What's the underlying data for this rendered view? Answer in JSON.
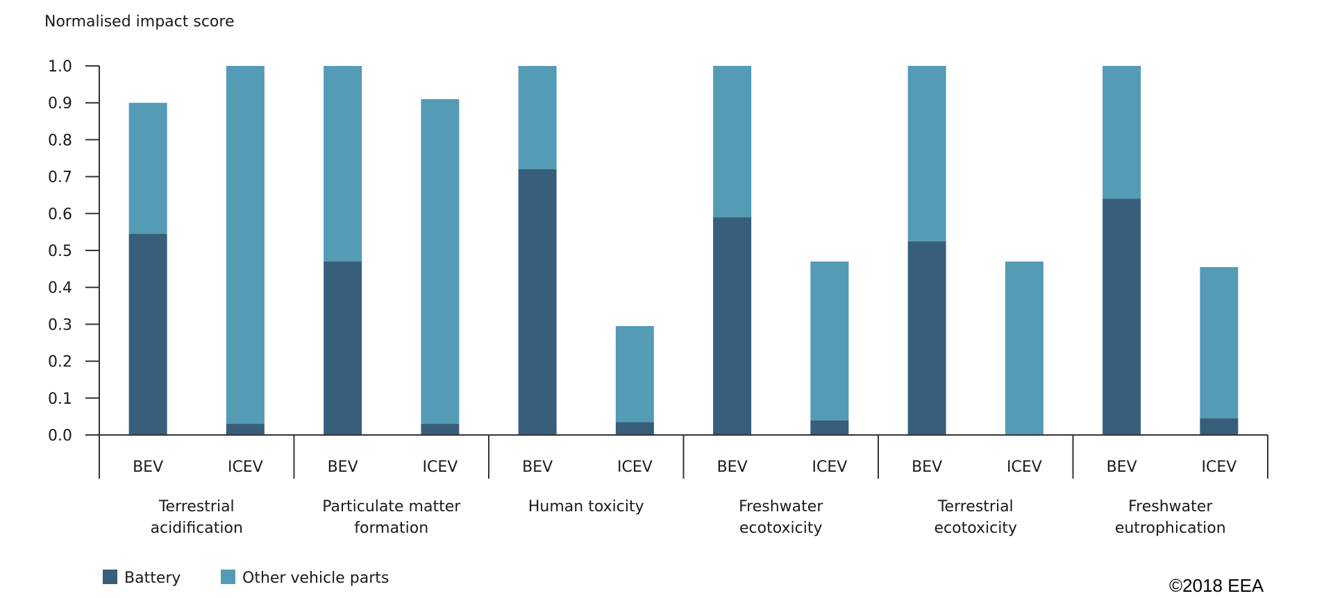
{
  "chart_data": {
    "type": "bar",
    "stacked": true,
    "ylabel": "Normalised impact score",
    "ylim": [
      0,
      1.0
    ],
    "yticks": [
      "0.0",
      "0.1",
      "0.2",
      "0.3",
      "0.4",
      "0.5",
      "0.6",
      "0.7",
      "0.8",
      "0.9",
      "1.0"
    ],
    "bar_labels": [
      "BEV",
      "ICEV"
    ],
    "groups": [
      {
        "name_lines": [
          "Terrestrial",
          "acidification"
        ],
        "bars": [
          {
            "label": "BEV",
            "battery": 0.545,
            "other": 0.355
          },
          {
            "label": "ICEV",
            "battery": 0.03,
            "other": 0.97
          }
        ]
      },
      {
        "name_lines": [
          "Particulate matter",
          "formation"
        ],
        "bars": [
          {
            "label": "BEV",
            "battery": 0.47,
            "other": 0.53
          },
          {
            "label": "ICEV",
            "battery": 0.03,
            "other": 0.88
          }
        ]
      },
      {
        "name_lines": [
          "Human toxicity"
        ],
        "bars": [
          {
            "label": "BEV",
            "battery": 0.72,
            "other": 0.28
          },
          {
            "label": "ICEV",
            "battery": 0.035,
            "other": 0.26
          }
        ]
      },
      {
        "name_lines": [
          "Freshwater",
          "ecotoxicity"
        ],
        "bars": [
          {
            "label": "BEV",
            "battery": 0.59,
            "other": 0.41
          },
          {
            "label": "ICEV",
            "battery": 0.04,
            "other": 0.43
          }
        ]
      },
      {
        "name_lines": [
          "Terrestrial",
          "ecotoxicity"
        ],
        "bars": [
          {
            "label": "BEV",
            "battery": 0.525,
            "other": 0.475
          },
          {
            "label": "ICEV",
            "battery": 0.0,
            "other": 0.47
          }
        ]
      },
      {
        "name_lines": [
          "Freshwater",
          "eutrophication"
        ],
        "bars": [
          {
            "label": "BEV",
            "battery": 0.64,
            "other": 0.36
          },
          {
            "label": "ICEV",
            "battery": 0.045,
            "other": 0.41
          }
        ]
      }
    ],
    "series": [
      {
        "name": "Battery",
        "color": "#375e7a"
      },
      {
        "name": "Other vehicle parts",
        "color": "#549bb6"
      }
    ],
    "legend_position": "bottom-left",
    "grid": false
  },
  "copyright": "©2018 EEA"
}
